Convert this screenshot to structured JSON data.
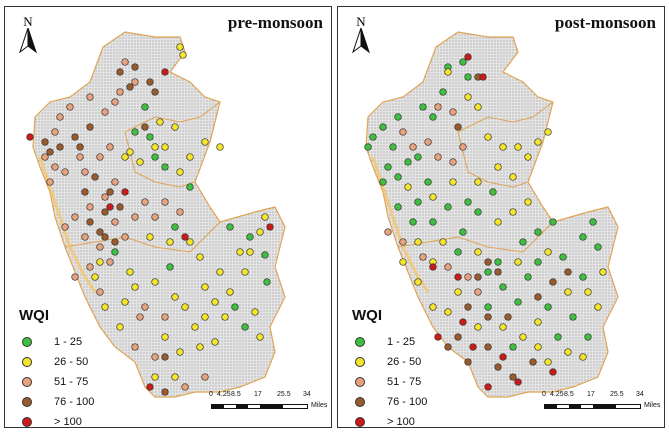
{
  "panels": [
    {
      "id": "left",
      "title": "pre-monsoon",
      "north_label": "N",
      "points": {
        "cat1": [
          [
            140,
            100
          ],
          [
            130,
            125
          ],
          [
            145,
            130
          ],
          [
            170,
            220
          ],
          [
            225,
            220
          ],
          [
            245,
            230
          ],
          [
            260,
            248
          ],
          [
            230,
            300
          ],
          [
            240,
            320
          ],
          [
            262,
            275
          ],
          [
            150,
            150
          ],
          [
            160,
            160
          ],
          [
            185,
            180
          ],
          [
            110,
            245
          ],
          [
            165,
            260
          ]
        ],
        "cat2": [
          [
            175,
            40
          ],
          [
            178,
            48
          ],
          [
            155,
            115
          ],
          [
            170,
            120
          ],
          [
            185,
            150
          ],
          [
            200,
            135
          ],
          [
            215,
            140
          ],
          [
            160,
            140
          ],
          [
            175,
            165
          ],
          [
            150,
            140
          ],
          [
            135,
            155
          ],
          [
            125,
            145
          ],
          [
            120,
            150
          ],
          [
            245,
            245
          ],
          [
            215,
            265
          ],
          [
            200,
            280
          ],
          [
            210,
            295
          ],
          [
            180,
            300
          ],
          [
            200,
            310
          ],
          [
            190,
            320
          ],
          [
            220,
            310
          ],
          [
            260,
            210
          ],
          [
            255,
            225
          ],
          [
            235,
            245
          ],
          [
            240,
            265
          ],
          [
            225,
            285
          ],
          [
            195,
            340
          ],
          [
            175,
            345
          ],
          [
            160,
            330
          ],
          [
            170,
            290
          ],
          [
            150,
            275
          ],
          [
            130,
            280
          ],
          [
            120,
            295
          ],
          [
            100,
            300
          ],
          [
            115,
            320
          ],
          [
            210,
            335
          ],
          [
            255,
            330
          ],
          [
            250,
            305
          ],
          [
            150,
            370
          ],
          [
            170,
            370
          ],
          [
            185,
            235
          ],
          [
            165,
            235
          ],
          [
            195,
            250
          ],
          [
            145,
            230
          ],
          [
            125,
            265
          ],
          [
            95,
            255
          ],
          [
            90,
            270
          ]
        ],
        "cat3": [
          [
            120,
            55
          ],
          [
            115,
            85
          ],
          [
            110,
            95
          ],
          [
            130,
            75
          ],
          [
            100,
            105
          ],
          [
            85,
            90
          ],
          [
            65,
            100
          ],
          [
            55,
            110
          ],
          [
            50,
            125
          ],
          [
            40,
            150
          ],
          [
            50,
            160
          ],
          [
            45,
            175
          ],
          [
            60,
            165
          ],
          [
            75,
            150
          ],
          [
            80,
            165
          ],
          [
            95,
            150
          ],
          [
            105,
            140
          ],
          [
            110,
            175
          ],
          [
            100,
            190
          ],
          [
            85,
            200
          ],
          [
            70,
            210
          ],
          [
            60,
            220
          ],
          [
            80,
            230
          ],
          [
            95,
            240
          ],
          [
            110,
            215
          ],
          [
            120,
            230
          ],
          [
            130,
            210
          ],
          [
            140,
            195
          ],
          [
            160,
            195
          ],
          [
            175,
            205
          ],
          [
            150,
            210
          ],
          [
            85,
            260
          ],
          [
            70,
            270
          ],
          [
            95,
            285
          ],
          [
            105,
            255
          ],
          [
            140,
            300
          ],
          [
            160,
            310
          ],
          [
            130,
            340
          ],
          [
            150,
            350
          ],
          [
            180,
            380
          ],
          [
            200,
            370
          ],
          [
            135,
            310
          ]
        ],
        "cat4": [
          [
            115,
            65
          ],
          [
            130,
            60
          ],
          [
            125,
            80
          ],
          [
            145,
            75
          ],
          [
            150,
            85
          ],
          [
            70,
            130
          ],
          [
            75,
            140
          ],
          [
            85,
            120
          ],
          [
            55,
            140
          ],
          [
            40,
            135
          ],
          [
            45,
            145
          ],
          [
            90,
            170
          ],
          [
            100,
            205
          ],
          [
            85,
            215
          ],
          [
            95,
            225
          ],
          [
            105,
            185
          ],
          [
            115,
            200
          ],
          [
            80,
            185
          ],
          [
            100,
            230
          ],
          [
            110,
            235
          ],
          [
            140,
            120
          ],
          [
            160,
            350
          ],
          [
            160,
            385
          ]
        ],
        "cat5": [
          [
            160,
            65
          ],
          [
            25,
            130
          ],
          [
            120,
            185
          ],
          [
            105,
            200
          ],
          [
            180,
            230
          ],
          [
            265,
            220
          ],
          [
            145,
            380
          ]
        ]
      }
    },
    {
      "id": "right",
      "title": "post-monsoon",
      "north_label": "N",
      "points": {
        "cat1": [
          [
            110,
            60
          ],
          [
            125,
            55
          ],
          [
            130,
            70
          ],
          [
            105,
            85
          ],
          [
            85,
            100
          ],
          [
            95,
            110
          ],
          [
            60,
            110
          ],
          [
            45,
            120
          ],
          [
            35,
            130
          ],
          [
            30,
            140
          ],
          [
            55,
            140
          ],
          [
            50,
            160
          ],
          [
            45,
            175
          ],
          [
            60,
            170
          ],
          [
            70,
            155
          ],
          [
            80,
            150
          ],
          [
            90,
            175
          ],
          [
            80,
            195
          ],
          [
            60,
            200
          ],
          [
            75,
            215
          ],
          [
            95,
            215
          ],
          [
            110,
            200
          ],
          [
            130,
            195
          ],
          [
            140,
            205
          ],
          [
            155,
            185
          ],
          [
            125,
            225
          ],
          [
            185,
            235
          ],
          [
            200,
            225
          ],
          [
            215,
            215
          ],
          [
            245,
            230
          ],
          [
            255,
            215
          ],
          [
            260,
            240
          ],
          [
            225,
            250
          ],
          [
            245,
            270
          ],
          [
            150,
            265
          ],
          [
            165,
            280
          ],
          [
            180,
            295
          ],
          [
            210,
            300
          ],
          [
            235,
            310
          ],
          [
            175,
            340
          ],
          [
            220,
            330
          ],
          [
            250,
            330
          ],
          [
            160,
            255
          ],
          [
            200,
            255
          ],
          [
            190,
            270
          ],
          [
            150,
            300
          ],
          [
            120,
            245
          ]
        ],
        "cat2": [
          [
            110,
            65
          ],
          [
            130,
            90
          ],
          [
            140,
            100
          ],
          [
            150,
            130
          ],
          [
            165,
            140
          ],
          [
            180,
            140
          ],
          [
            190,
            150
          ],
          [
            175,
            170
          ],
          [
            160,
            160
          ],
          [
            200,
            135
          ],
          [
            210,
            125
          ],
          [
            140,
            175
          ],
          [
            70,
            180
          ],
          [
            95,
            190
          ],
          [
            115,
            175
          ],
          [
            105,
            235
          ],
          [
            95,
            255
          ],
          [
            80,
            275
          ],
          [
            95,
            300
          ],
          [
            110,
            305
          ],
          [
            120,
            285
          ],
          [
            140,
            245
          ],
          [
            180,
            255
          ],
          [
            210,
            245
          ],
          [
            230,
            285
          ],
          [
            250,
            285
          ],
          [
            265,
            265
          ],
          [
            200,
            315
          ],
          [
            230,
            345
          ],
          [
            210,
            355
          ],
          [
            245,
            350
          ],
          [
            80,
            235
          ],
          [
            65,
            255
          ],
          [
            175,
            205
          ],
          [
            190,
            195
          ],
          [
            160,
            215
          ],
          [
            140,
            320
          ],
          [
            165,
            320
          ],
          [
            185,
            330
          ],
          [
            200,
            340
          ],
          [
            260,
            300
          ]
        ],
        "cat3": [
          [
            100,
            100
          ],
          [
            115,
            105
          ],
          [
            65,
            125
          ],
          [
            75,
            140
          ],
          [
            90,
            135
          ],
          [
            100,
            150
          ],
          [
            115,
            155
          ],
          [
            125,
            140
          ],
          [
            50,
            225
          ],
          [
            65,
            235
          ],
          [
            85,
            250
          ],
          [
            130,
            270
          ],
          [
            110,
            260
          ],
          [
            140,
            285
          ]
        ],
        "cat4": [
          [
            140,
            70
          ],
          [
            120,
            120
          ],
          [
            150,
            255
          ],
          [
            160,
            265
          ],
          [
            140,
            270
          ],
          [
            130,
            300
          ],
          [
            150,
            310
          ],
          [
            170,
            310
          ],
          [
            150,
            340
          ],
          [
            160,
            360
          ],
          [
            175,
            370
          ],
          [
            195,
            355
          ],
          [
            120,
            330
          ],
          [
            200,
            290
          ],
          [
            215,
            275
          ],
          [
            230,
            265
          ],
          [
            110,
            340
          ],
          [
            130,
            355
          ]
        ],
        "cat5": [
          [
            145,
            70
          ],
          [
            130,
            50
          ],
          [
            95,
            260
          ],
          [
            120,
            270
          ],
          [
            135,
            340
          ],
          [
            165,
            350
          ],
          [
            180,
            375
          ],
          [
            150,
            380
          ],
          [
            125,
            315
          ],
          [
            215,
            365
          ],
          [
            100,
            330
          ]
        ]
      }
    }
  ],
  "legend": {
    "title": "WQI",
    "items": [
      {
        "label": "1 - 25",
        "color": "#3fbf3f"
      },
      {
        "label": "26 - 50",
        "color": "#f5e62a"
      },
      {
        "label": "51 - 75",
        "color": "#e8a37e"
      },
      {
        "label": "76 - 100",
        "color": "#9b5a2c"
      },
      {
        "label": "> 100",
        "color": "#cc1a1a"
      }
    ]
  },
  "scale": {
    "ticks": [
      "0",
      "4.25",
      "8.5",
      "17",
      "25.5",
      "34"
    ],
    "unit": "Miles"
  },
  "colors": {
    "map_fill": "#dcdcdc",
    "boundary": "#e0a455",
    "coast": "#f2c56b"
  }
}
